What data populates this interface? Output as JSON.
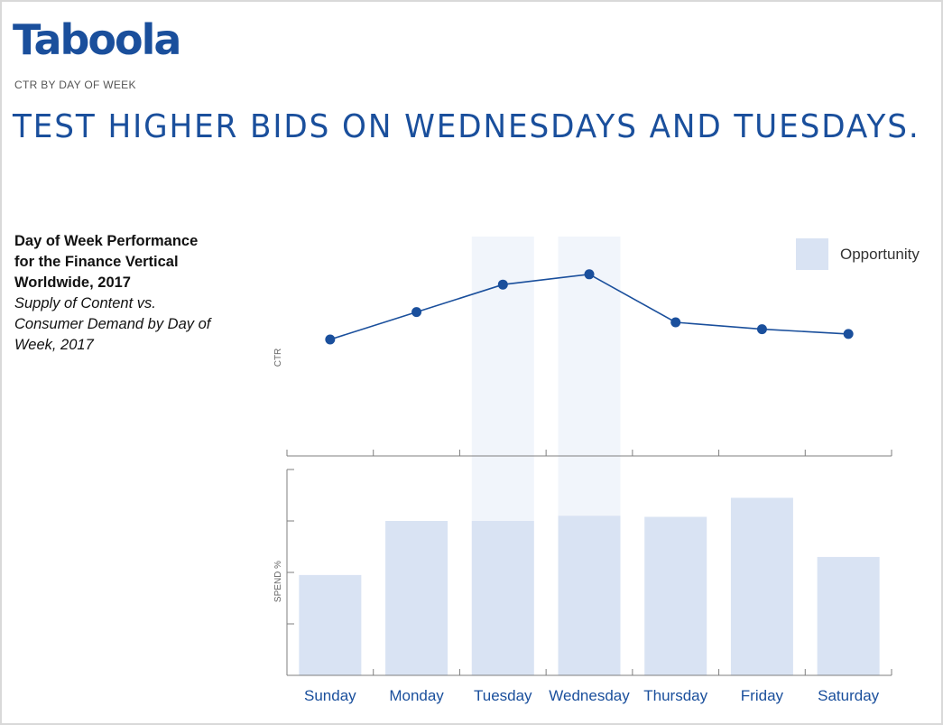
{
  "brand": {
    "logo_text": "Taboola",
    "accent": "#1a4f9c"
  },
  "subtitle": "CTR BY DAY OF WEEK",
  "headline": "TEST HIGHER BIDS ON WEDNESDAYS AND TUESDAYS.",
  "description": {
    "title": "Day of Week Performance for the Finance Vertical Worldwide, 2017",
    "subtitle": "Supply of Content vs. Consumer Demand by Day of Week, 2017"
  },
  "legend": {
    "label": "Opportunity",
    "color": "#d9e3f3"
  },
  "chart_data": [
    {
      "type": "line",
      "ylabel": "CTR",
      "categories": [
        "Sunday",
        "Monday",
        "Tuesday",
        "Wednesday",
        "Thursday",
        "Friday",
        "Saturday"
      ],
      "values": [
        1.0,
        1.4,
        1.8,
        1.95,
        1.25,
        1.15,
        1.08
      ],
      "ylim": [
        0,
        2.5
      ],
      "highlighted": [
        "Tuesday",
        "Wednesday"
      ],
      "line_color": "#1a4f9c",
      "grid": false
    },
    {
      "type": "bar",
      "ylabel": "SPEND %",
      "categories": [
        "Sunday",
        "Monday",
        "Tuesday",
        "Wednesday",
        "Thursday",
        "Friday",
        "Saturday"
      ],
      "values": [
        1.95,
        3.0,
        3.0,
        3.1,
        3.08,
        3.45,
        2.3
      ],
      "ylim": [
        0,
        4
      ],
      "bar_color": "#d9e3f3",
      "grid": false
    }
  ]
}
